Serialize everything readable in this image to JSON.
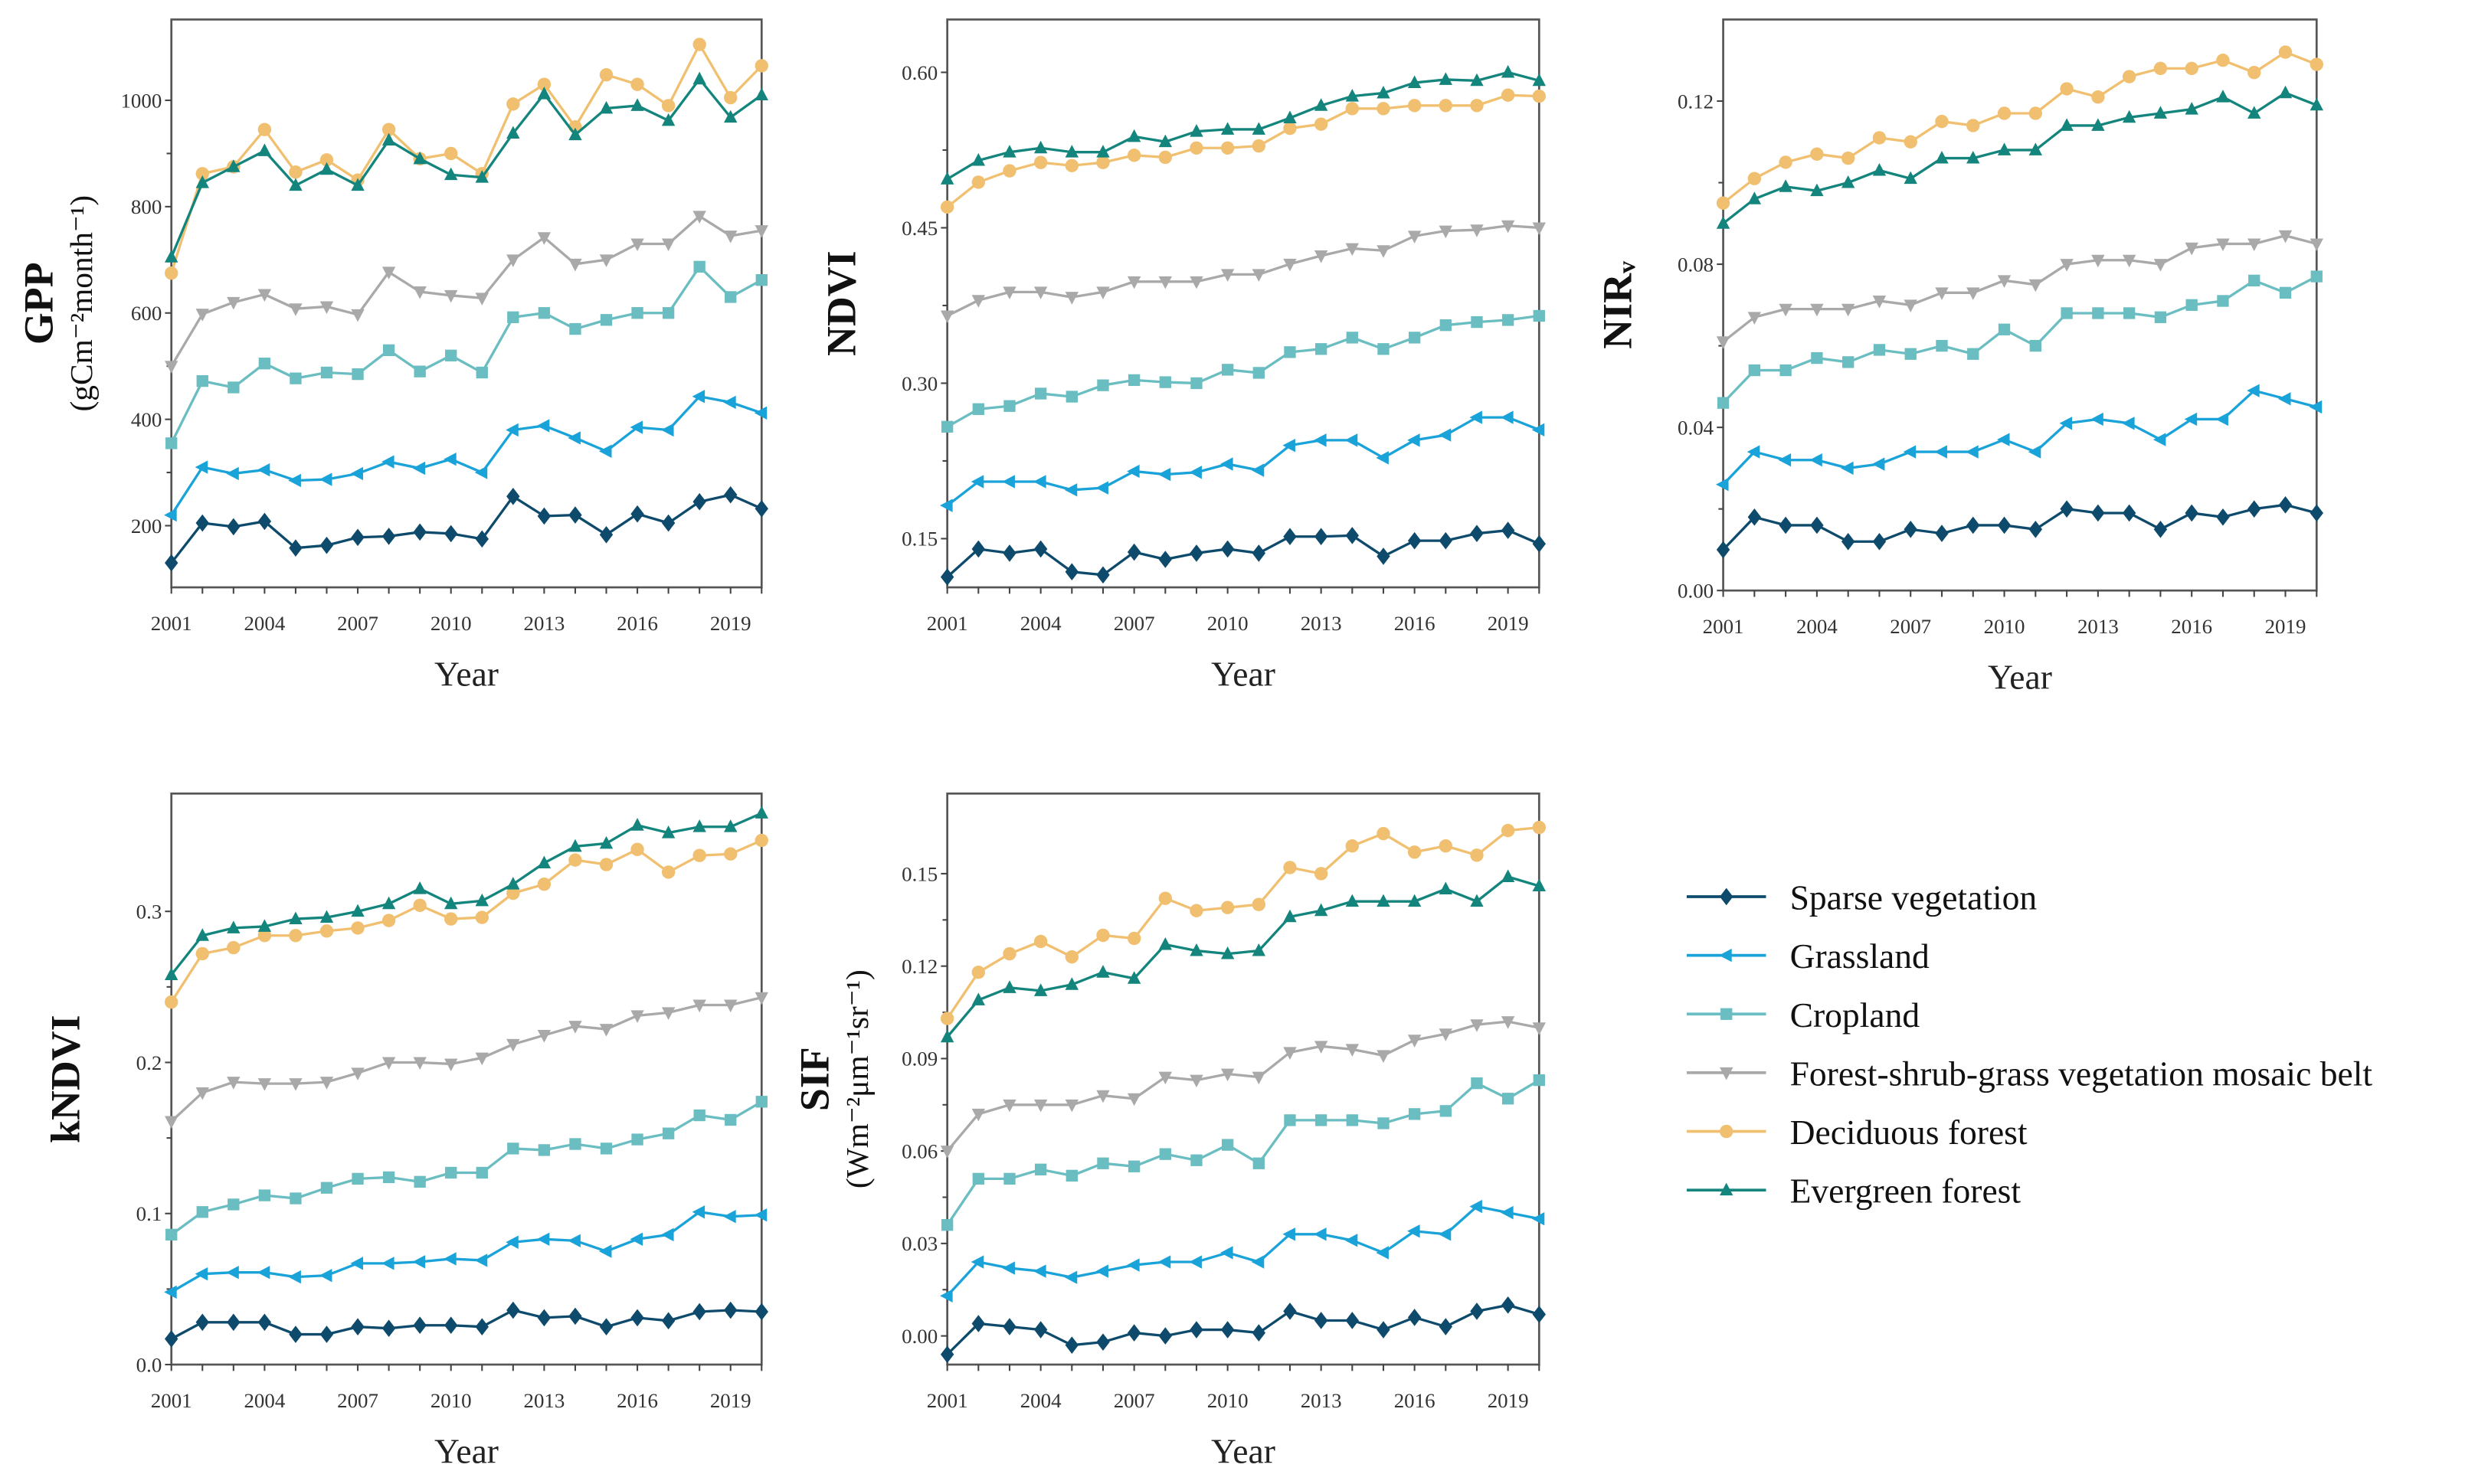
{
  "chart_data": [
    {
      "type": "line",
      "title": "",
      "xlabel": "Year",
      "ylabel": "GPP",
      "ylabel_unit": "(gCm⁻²month⁻¹)",
      "x": [
        2001,
        2002,
        2003,
        2004,
        2005,
        2006,
        2007,
        2008,
        2009,
        2010,
        2011,
        2012,
        2013,
        2014,
        2015,
        2016,
        2017,
        2018,
        2019,
        2020
      ],
      "xticks": [
        "2001",
        "2004",
        "2007",
        "2010",
        "2013",
        "2016",
        "2019"
      ],
      "yticks": [
        200,
        400,
        600,
        800,
        1000
      ],
      "ytick_labels": [
        "200",
        "400",
        "600",
        "800",
        "1000"
      ],
      "ylim": [
        84,
        1152
      ],
      "series": [
        {
          "name": "Sparse vegetation",
          "values": [
            130,
            205,
            198,
            208,
            158,
            163,
            178,
            180,
            188,
            185,
            175,
            255,
            218,
            220,
            183,
            222,
            205,
            245,
            258,
            232
          ]
        },
        {
          "name": "Grassland",
          "values": [
            220,
            310,
            298,
            305,
            285,
            287,
            298,
            320,
            308,
            325,
            300,
            380,
            388,
            365,
            340,
            385,
            380,
            443,
            432,
            412
          ]
        },
        {
          "name": "Cropland",
          "values": [
            355,
            472,
            460,
            505,
            477,
            488,
            485,
            530,
            490,
            520,
            488,
            592,
            600,
            570,
            587,
            600,
            600,
            687,
            630,
            662
          ]
        },
        {
          "name": "Forest-shrub-grass vegetation mosaic belt",
          "values": [
            500,
            598,
            620,
            635,
            608,
            612,
            597,
            677,
            640,
            633,
            628,
            700,
            742,
            692,
            700,
            730,
            730,
            782,
            745,
            755
          ]
        },
        {
          "name": "Deciduous forest",
          "values": [
            675,
            862,
            875,
            945,
            865,
            888,
            850,
            945,
            890,
            900,
            862,
            993,
            1030,
            950,
            1048,
            1030,
            990,
            1105,
            1005,
            1065
          ]
        },
        {
          "name": "Evergreen forest",
          "values": [
            705,
            845,
            875,
            905,
            840,
            870,
            840,
            925,
            890,
            860,
            855,
            938,
            1012,
            935,
            985,
            990,
            962,
            1040,
            968,
            1010
          ]
        }
      ]
    },
    {
      "type": "line",
      "title": "",
      "xlabel": "Year",
      "ylabel": "NDVI",
      "ylabel_unit": "",
      "x": [
        2001,
        2002,
        2003,
        2004,
        2005,
        2006,
        2007,
        2008,
        2009,
        2010,
        2011,
        2012,
        2013,
        2014,
        2015,
        2016,
        2017,
        2018,
        2019,
        2020
      ],
      "xticks": [
        "2001",
        "2004",
        "2007",
        "2010",
        "2013",
        "2016",
        "2019"
      ],
      "yticks": [
        0.15,
        0.3,
        0.45,
        0.6
      ],
      "ytick_labels": [
        "0.15",
        "0.30",
        "0.45",
        "0.60"
      ],
      "ylim": [
        0.103,
        0.651
      ],
      "series": [
        {
          "name": "Sparse vegetation",
          "values": [
            0.113,
            0.14,
            0.136,
            0.14,
            0.118,
            0.115,
            0.137,
            0.13,
            0.136,
            0.14,
            0.136,
            0.152,
            0.152,
            0.153,
            0.133,
            0.148,
            0.148,
            0.155,
            0.158,
            0.145
          ]
        },
        {
          "name": "Grassland",
          "values": [
            0.182,
            0.205,
            0.205,
            0.205,
            0.197,
            0.199,
            0.215,
            0.212,
            0.214,
            0.222,
            0.216,
            0.24,
            0.245,
            0.245,
            0.228,
            0.245,
            0.25,
            0.267,
            0.267,
            0.255
          ]
        },
        {
          "name": "Cropland",
          "values": [
            0.258,
            0.275,
            0.278,
            0.29,
            0.287,
            0.298,
            0.303,
            0.301,
            0.3,
            0.313,
            0.31,
            0.33,
            0.333,
            0.344,
            0.333,
            0.344,
            0.356,
            0.359,
            0.361,
            0.365
          ]
        },
        {
          "name": "Forest-shrub-grass vegetation mosaic belt",
          "values": [
            0.365,
            0.38,
            0.388,
            0.388,
            0.383,
            0.388,
            0.398,
            0.398,
            0.398,
            0.405,
            0.405,
            0.415,
            0.423,
            0.43,
            0.428,
            0.442,
            0.447,
            0.448,
            0.452,
            0.45
          ]
        },
        {
          "name": "Deciduous forest",
          "values": [
            0.47,
            0.494,
            0.505,
            0.513,
            0.51,
            0.513,
            0.52,
            0.518,
            0.527,
            0.527,
            0.529,
            0.546,
            0.55,
            0.565,
            0.565,
            0.568,
            0.568,
            0.568,
            0.578,
            0.577
          ]
        },
        {
          "name": "Evergreen forest",
          "values": [
            0.497,
            0.515,
            0.523,
            0.527,
            0.523,
            0.523,
            0.538,
            0.533,
            0.543,
            0.545,
            0.545,
            0.556,
            0.568,
            0.577,
            0.58,
            0.59,
            0.593,
            0.592,
            0.6,
            0.592
          ]
        }
      ]
    },
    {
      "type": "line",
      "title": "",
      "xlabel": "Year",
      "ylabel": "NIRᵥ",
      "ylabel_unit": "",
      "x": [
        2001,
        2002,
        2003,
        2004,
        2005,
        2006,
        2007,
        2008,
        2009,
        2010,
        2011,
        2012,
        2013,
        2014,
        2015,
        2016,
        2017,
        2018,
        2019,
        2020
      ],
      "xticks": [
        "2001",
        "2004",
        "2007",
        "2010",
        "2013",
        "2016",
        "2019"
      ],
      "yticks": [
        0,
        0.04,
        0.08,
        0.12
      ],
      "ytick_labels": [
        "0.00",
        "0.04",
        "0.08",
        "0.12"
      ],
      "ylim": [
        0,
        0.14
      ],
      "series": [
        {
          "name": "Sparse vegetation",
          "values": [
            0.01,
            0.018,
            0.016,
            0.016,
            0.012,
            0.012,
            0.015,
            0.014,
            0.016,
            0.016,
            0.015,
            0.02,
            0.019,
            0.019,
            0.015,
            0.019,
            0.018,
            0.02,
            0.021,
            0.019
          ]
        },
        {
          "name": "Grassland",
          "values": [
            0.026,
            0.034,
            0.032,
            0.032,
            0.03,
            0.031,
            0.034,
            0.034,
            0.034,
            0.037,
            0.034,
            0.041,
            0.042,
            0.041,
            0.037,
            0.042,
            0.042,
            0.049,
            0.047,
            0.045
          ]
        },
        {
          "name": "Cropland",
          "values": [
            0.046,
            0.054,
            0.054,
            0.057,
            0.056,
            0.059,
            0.058,
            0.06,
            0.058,
            0.064,
            0.06,
            0.068,
            0.068,
            0.068,
            0.067,
            0.07,
            0.071,
            0.076,
            0.073,
            0.077
          ]
        },
        {
          "name": "Forest-shrub-grass vegetation mosaic belt",
          "values": [
            0.061,
            0.067,
            0.069,
            0.069,
            0.069,
            0.071,
            0.07,
            0.073,
            0.073,
            0.076,
            0.075,
            0.08,
            0.081,
            0.081,
            0.08,
            0.084,
            0.085,
            0.085,
            0.087,
            0.085
          ]
        },
        {
          "name": "Deciduous forest",
          "values": [
            0.095,
            0.101,
            0.105,
            0.107,
            0.106,
            0.111,
            0.11,
            0.115,
            0.114,
            0.117,
            0.117,
            0.123,
            0.121,
            0.126,
            0.128,
            0.128,
            0.13,
            0.127,
            0.132,
            0.129
          ]
        },
        {
          "name": "Evergreen forest",
          "values": [
            0.09,
            0.096,
            0.099,
            0.098,
            0.1,
            0.103,
            0.101,
            0.106,
            0.106,
            0.108,
            0.108,
            0.114,
            0.114,
            0.116,
            0.117,
            0.118,
            0.121,
            0.117,
            0.122,
            0.119
          ]
        }
      ]
    },
    {
      "type": "line",
      "title": "",
      "xlabel": "Year",
      "ylabel": "kNDVI",
      "ylabel_unit": "",
      "x": [
        2001,
        2002,
        2003,
        2004,
        2005,
        2006,
        2007,
        2008,
        2009,
        2010,
        2011,
        2012,
        2013,
        2014,
        2015,
        2016,
        2017,
        2018,
        2019,
        2020
      ],
      "xticks": [
        "2001",
        "2004",
        "2007",
        "2010",
        "2013",
        "2016",
        "2019"
      ],
      "yticks": [
        0,
        0.1,
        0.2,
        0.3
      ],
      "ytick_labels": [
        "0.0",
        "0.1",
        "0.2",
        "0.3"
      ],
      "ylim": [
        0,
        0.378
      ],
      "series": [
        {
          "name": "Sparse vegetation",
          "values": [
            0.017,
            0.028,
            0.028,
            0.028,
            0.02,
            0.02,
            0.025,
            0.024,
            0.026,
            0.026,
            0.025,
            0.036,
            0.031,
            0.032,
            0.025,
            0.031,
            0.029,
            0.035,
            0.036,
            0.035
          ]
        },
        {
          "name": "Grassland",
          "values": [
            0.048,
            0.06,
            0.061,
            0.061,
            0.058,
            0.059,
            0.067,
            0.067,
            0.068,
            0.07,
            0.069,
            0.081,
            0.083,
            0.082,
            0.075,
            0.083,
            0.086,
            0.101,
            0.098,
            0.099
          ]
        },
        {
          "name": "Cropland",
          "values": [
            0.086,
            0.101,
            0.106,
            0.112,
            0.11,
            0.117,
            0.123,
            0.124,
            0.121,
            0.127,
            0.127,
            0.143,
            0.142,
            0.146,
            0.143,
            0.149,
            0.153,
            0.165,
            0.162,
            0.174
          ]
        },
        {
          "name": "Forest-shrub-grass vegetation mosaic belt",
          "values": [
            0.161,
            0.18,
            0.187,
            0.186,
            0.186,
            0.187,
            0.193,
            0.2,
            0.2,
            0.199,
            0.203,
            0.212,
            0.218,
            0.224,
            0.222,
            0.231,
            0.233,
            0.238,
            0.238,
            0.243
          ]
        },
        {
          "name": "Deciduous forest",
          "values": [
            0.24,
            0.272,
            0.276,
            0.284,
            0.284,
            0.287,
            0.289,
            0.294,
            0.304,
            0.295,
            0.296,
            0.312,
            0.318,
            0.334,
            0.331,
            0.341,
            0.326,
            0.337,
            0.338,
            0.347
          ]
        },
        {
          "name": "Evergreen forest",
          "values": [
            0.258,
            0.284,
            0.289,
            0.29,
            0.295,
            0.296,
            0.3,
            0.305,
            0.315,
            0.305,
            0.307,
            0.318,
            0.332,
            0.343,
            0.345,
            0.357,
            0.352,
            0.356,
            0.356,
            0.365
          ]
        }
      ]
    },
    {
      "type": "line",
      "title": "",
      "xlabel": "Year",
      "ylabel": "SIF",
      "ylabel_unit": "(Wm⁻²μm⁻¹sr⁻¹)",
      "x": [
        2001,
        2002,
        2003,
        2004,
        2005,
        2006,
        2007,
        2008,
        2009,
        2010,
        2011,
        2012,
        2013,
        2014,
        2015,
        2016,
        2017,
        2018,
        2019,
        2020
      ],
      "xticks": [
        "2001",
        "2004",
        "2007",
        "2010",
        "2013",
        "2016",
        "2019"
      ],
      "yticks": [
        0,
        0.03,
        0.06,
        0.09,
        0.12,
        0.15
      ],
      "ytick_labels": [
        "0.00",
        "0.03",
        "0.06",
        "0.09",
        "0.12",
        "0.15"
      ],
      "ylim": [
        -0.0093,
        0.176
      ],
      "series": [
        {
          "name": "Sparse vegetation",
          "values": [
            -0.006,
            0.004,
            0.003,
            0.002,
            -0.003,
            -0.002,
            0.001,
            0.0,
            0.002,
            0.002,
            0.001,
            0.008,
            0.005,
            0.005,
            0.002,
            0.006,
            0.003,
            0.008,
            0.01,
            0.007
          ]
        },
        {
          "name": "Grassland",
          "values": [
            0.013,
            0.024,
            0.022,
            0.021,
            0.019,
            0.021,
            0.023,
            0.024,
            0.024,
            0.027,
            0.024,
            0.033,
            0.033,
            0.031,
            0.027,
            0.034,
            0.033,
            0.042,
            0.04,
            0.038
          ]
        },
        {
          "name": "Cropland",
          "values": [
            0.036,
            0.051,
            0.051,
            0.054,
            0.052,
            0.056,
            0.055,
            0.059,
            0.057,
            0.062,
            0.056,
            0.07,
            0.07,
            0.07,
            0.069,
            0.072,
            0.073,
            0.082,
            0.077,
            0.083
          ]
        },
        {
          "name": "Forest-shrub-grass vegetation mosaic belt",
          "values": [
            0.06,
            0.072,
            0.075,
            0.075,
            0.075,
            0.078,
            0.077,
            0.084,
            0.083,
            0.085,
            0.084,
            0.092,
            0.094,
            0.093,
            0.091,
            0.096,
            0.098,
            0.101,
            0.102,
            0.1
          ]
        },
        {
          "name": "Deciduous forest",
          "values": [
            0.103,
            0.118,
            0.124,
            0.128,
            0.123,
            0.13,
            0.129,
            0.142,
            0.138,
            0.139,
            0.14,
            0.152,
            0.15,
            0.159,
            0.163,
            0.157,
            0.159,
            0.156,
            0.164,
            0.165
          ]
        },
        {
          "name": "Evergreen forest",
          "values": [
            0.097,
            0.109,
            0.113,
            0.112,
            0.114,
            0.118,
            0.116,
            0.127,
            0.125,
            0.124,
            0.125,
            0.136,
            0.138,
            0.141,
            0.141,
            0.141,
            0.145,
            0.141,
            0.149,
            0.146
          ]
        }
      ]
    }
  ],
  "legend": {
    "placement": "right",
    "items": [
      {
        "name": "Sparse vegetation",
        "color": "#0d4a6b",
        "marker": "diamond"
      },
      {
        "name": "Grassland",
        "color": "#1aa3d9",
        "marker": "triangle-left"
      },
      {
        "name": "Cropland",
        "color": "#6abdc0",
        "marker": "square"
      },
      {
        "name": "Forest-shrub-grass vegetation mosaic belt",
        "color": "#a9a9a9",
        "marker": "triangle-down"
      },
      {
        "name": "Deciduous forest",
        "color": "#f0c070",
        "marker": "circle"
      },
      {
        "name": "Evergreen forest",
        "color": "#13857d",
        "marker": "triangle-up"
      }
    ]
  }
}
